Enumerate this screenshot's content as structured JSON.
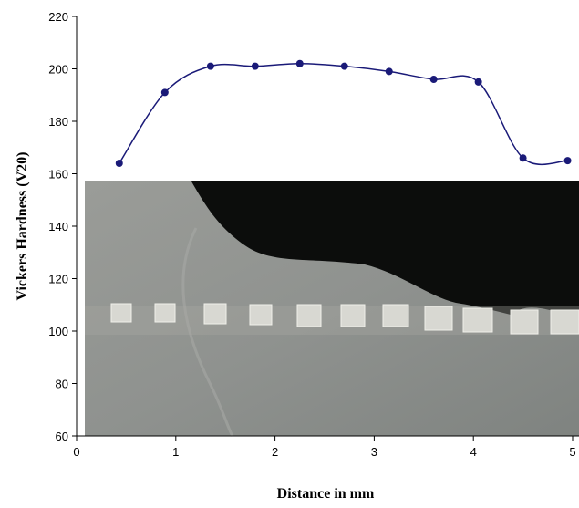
{
  "chart_data": {
    "type": "line",
    "x_label": "Distance in mm",
    "y_label": "Vickers Hardness (V20)",
    "x": [
      0.43,
      0.89,
      1.35,
      1.8,
      2.25,
      2.7,
      3.15,
      3.6,
      4.05,
      4.5,
      4.95
    ],
    "values": [
      164,
      191,
      201,
      201,
      202,
      201,
      199,
      196,
      195,
      166,
      165
    ],
    "color": "#1a1a78",
    "xlim": [
      0,
      5
    ],
    "xticks": [
      0,
      1,
      2,
      3,
      4,
      5
    ],
    "ylim": [
      60,
      220
    ],
    "yticks": [
      60,
      80,
      100,
      120,
      140,
      160,
      180,
      200,
      220
    ]
  }
}
